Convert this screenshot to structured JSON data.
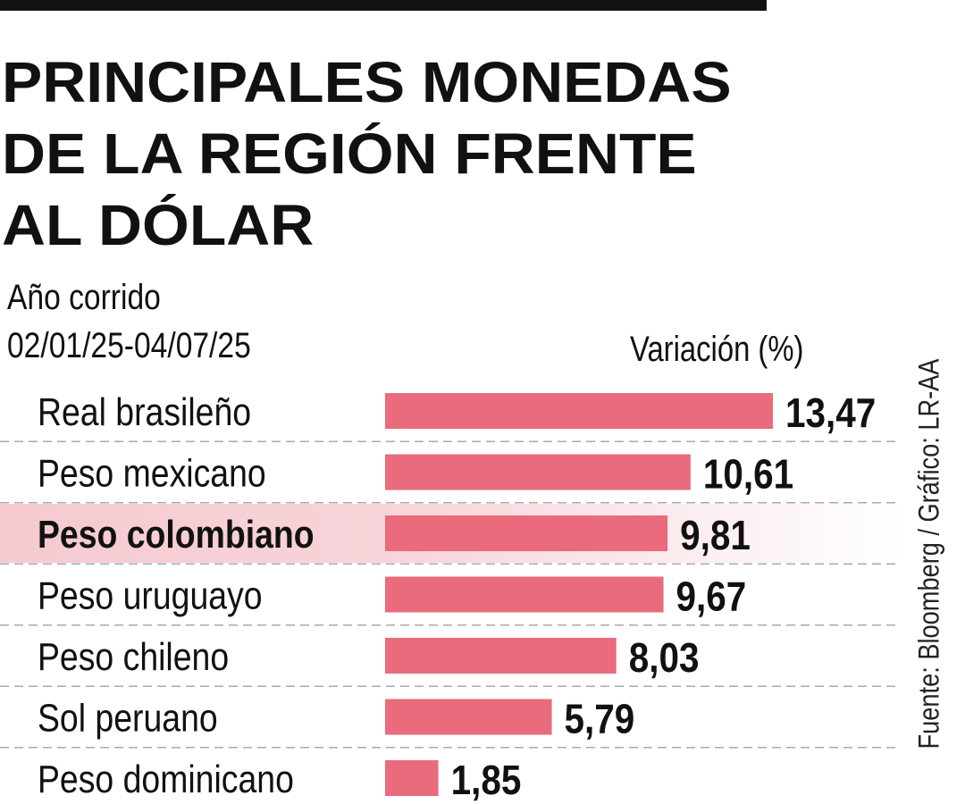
{
  "header": {
    "title_lines": [
      "PRINCIPALES MONEDAS",
      "DE LA REGIÓN FRENTE",
      "AL DÓLAR"
    ],
    "subtitle_lines": [
      "Año corrido",
      "02/01/25-04/07/25"
    ],
    "unit_label": "Variación (%)",
    "source": "Fuente: Bloomberg / Gráfico: LR-AA"
  },
  "colors": {
    "bar": "#e96b7c",
    "highlight_band": "#f4c7cd",
    "text": "#111111",
    "divider": "#aaaaaa"
  },
  "chart_data": {
    "type": "bar",
    "orientation": "horizontal",
    "title": "PRINCIPALES MONEDAS DE LA REGIÓN FRENTE AL DÓLAR",
    "subtitle": "Año corrido 02/01/25-04/07/25",
    "xlabel": "Variación (%)",
    "ylabel": "",
    "categories": [
      "Real brasileño",
      "Peso mexicano",
      "Peso colombiano",
      "Peso uruguayo",
      "Peso chileno",
      "Sol peruano",
      "Peso dominicano"
    ],
    "values": [
      13.47,
      10.61,
      9.81,
      9.67,
      8.03,
      5.79,
      1.85
    ],
    "value_labels": [
      "13,47",
      "10,61",
      "9,81",
      "9,67",
      "8,03",
      "5,79",
      "1,85"
    ],
    "highlighted_category": "Peso colombiano",
    "xlim": [
      0,
      13.47
    ],
    "grid": false,
    "legend": "none"
  }
}
